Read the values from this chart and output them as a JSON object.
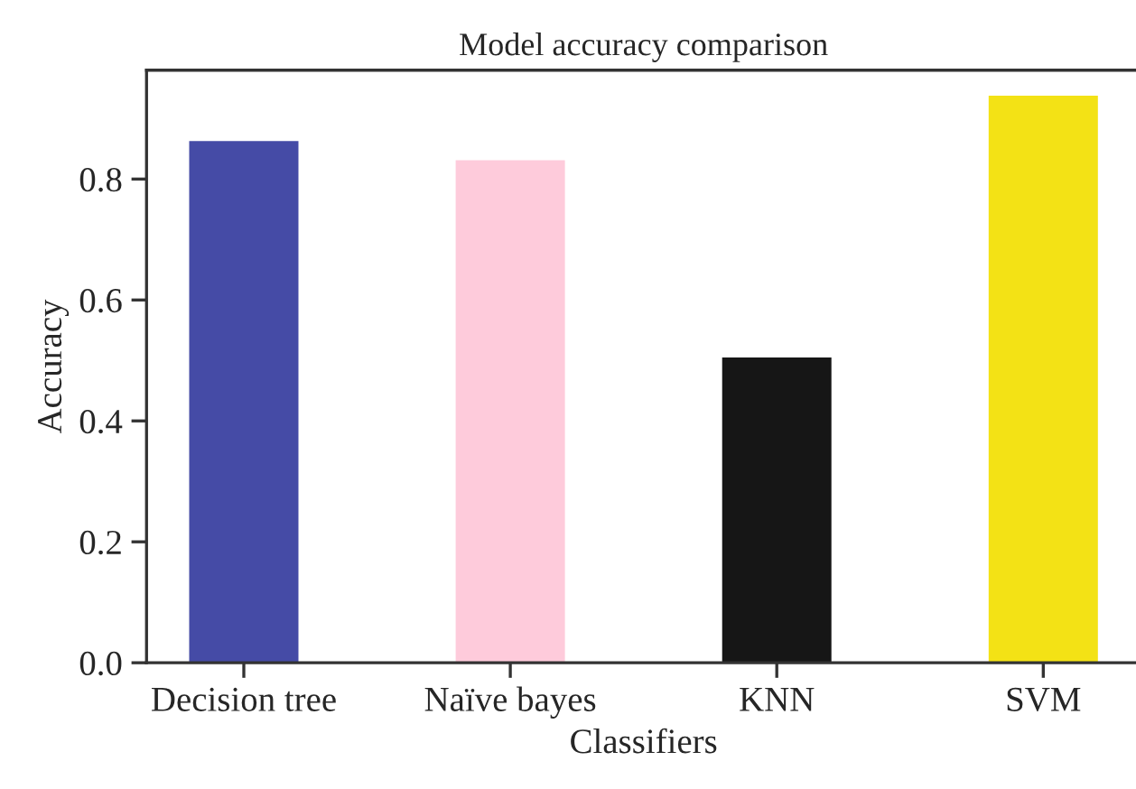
{
  "chart_data": {
    "type": "bar",
    "title": "Model accuracy comparison",
    "xlabel": "Classifiers",
    "ylabel": "Accuracy",
    "categories": [
      "Decision tree",
      "Naïve bayes",
      "KNN",
      "SVM"
    ],
    "values": [
      0.863,
      0.831,
      0.505,
      0.938
    ],
    "colors": [
      "#454ba6",
      "#fecbdb",
      "#161616",
      "#f3e215"
    ],
    "ylim": [
      0,
      0.98
    ],
    "yticks": [
      {
        "value": 0,
        "label": "0.0"
      },
      0.2,
      0.4,
      0.6,
      0.8
    ],
    "grid": false,
    "legend": false
  }
}
